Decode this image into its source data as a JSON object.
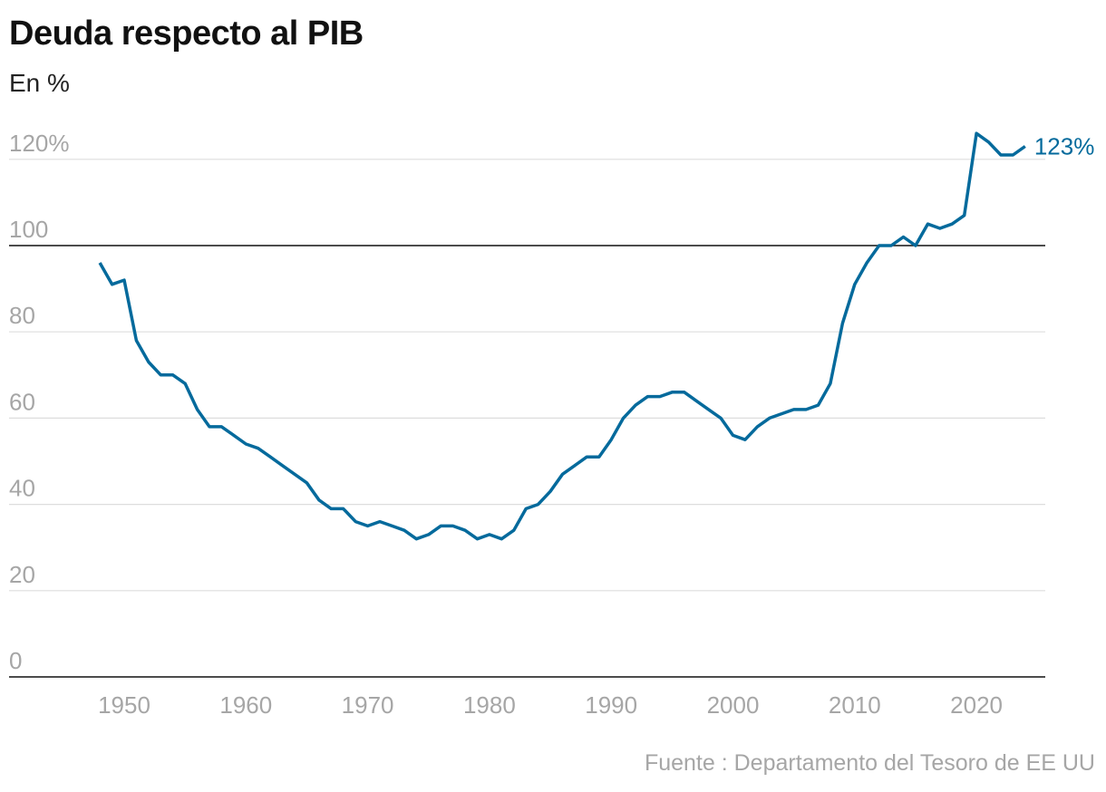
{
  "chart_data": {
    "type": "line",
    "title": "Deuda respecto al PIB",
    "subtitle": "En %",
    "source": "Fuente : Departamento del Tesoro de EE UU",
    "xlabel": "",
    "ylabel": "",
    "xlim": [
      1943,
      2025
    ],
    "ylim": [
      0,
      126
    ],
    "x_ticks": [
      1950,
      1960,
      1970,
      1980,
      1990,
      2000,
      2010,
      2020
    ],
    "y_ticks": [
      {
        "value": 0,
        "label": "0"
      },
      {
        "value": 20,
        "label": "20"
      },
      {
        "value": 40,
        "label": "40"
      },
      {
        "value": 60,
        "label": "60"
      },
      {
        "value": 80,
        "label": "80"
      },
      {
        "value": 100,
        "label": "100"
      },
      {
        "value": 120,
        "label": "120%"
      }
    ],
    "grid": true,
    "reference_line": 100,
    "end_label": "123%",
    "colors": {
      "line": "#046a9c",
      "grid": "#dddddd",
      "axis": "#111111",
      "tick": "#a6a6a6"
    },
    "series": [
      {
        "x": [
          1948,
          1949,
          1950,
          1951,
          1952,
          1953,
          1954,
          1955,
          1956,
          1957,
          1958,
          1959,
          1960,
          1961,
          1962,
          1963,
          1964,
          1965,
          1966,
          1967,
          1968,
          1969,
          1970,
          1971,
          1972,
          1973,
          1974,
          1975,
          1976,
          1977,
          1978,
          1979,
          1980,
          1981,
          1982,
          1983,
          1984,
          1985,
          1986,
          1987,
          1988,
          1989,
          1990,
          1991,
          1992,
          1993,
          1994,
          1995,
          1996,
          1997,
          1998,
          1999,
          2000,
          2001,
          2002,
          2003,
          2004,
          2005,
          2006,
          2007,
          2008,
          2009,
          2010,
          2011,
          2012,
          2013,
          2014,
          2015,
          2016,
          2017,
          2018,
          2019,
          2020,
          2021,
          2022,
          2023,
          2024
        ],
        "y": [
          96,
          91,
          92,
          78,
          73,
          70,
          70,
          68,
          62,
          58,
          58,
          56,
          54,
          53,
          51,
          49,
          47,
          45,
          41,
          39,
          39,
          36,
          35,
          36,
          35,
          34,
          32,
          33,
          35,
          35,
          34,
          32,
          33,
          32,
          34,
          39,
          40,
          43,
          47,
          49,
          51,
          51,
          55,
          60,
          63,
          65,
          65,
          66,
          66,
          64,
          62,
          60,
          56,
          55,
          58,
          60,
          61,
          62,
          62,
          63,
          68,
          82,
          91,
          96,
          100,
          100,
          102,
          100,
          105,
          104,
          105,
          107,
          126,
          124,
          121,
          121,
          123
        ]
      }
    ]
  }
}
